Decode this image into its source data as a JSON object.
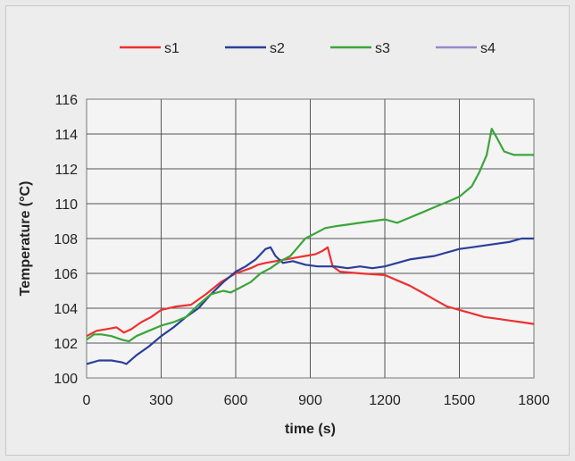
{
  "chart_data": {
    "type": "line",
    "title": "",
    "xlabel": "time (s)",
    "ylabel": "Temperature (°C)",
    "xlim": [
      0,
      1800
    ],
    "ylim": [
      100,
      116
    ],
    "x_ticks": [
      "0",
      "300",
      "600",
      "900",
      "1200",
      "1500",
      "1800"
    ],
    "y_ticks": [
      "100",
      "102",
      "104",
      "106",
      "108",
      "110",
      "112",
      "114",
      "116"
    ],
    "grid": true,
    "legend_position": "top",
    "series": [
      {
        "name": "s1",
        "color": "#ee3030",
        "points": [
          [
            0,
            102.4
          ],
          [
            40,
            102.7
          ],
          [
            80,
            102.8
          ],
          [
            120,
            102.9
          ],
          [
            150,
            102.6
          ],
          [
            180,
            102.8
          ],
          [
            220,
            103.2
          ],
          [
            260,
            103.5
          ],
          [
            300,
            103.9
          ],
          [
            360,
            104.1
          ],
          [
            420,
            104.2
          ],
          [
            480,
            104.8
          ],
          [
            540,
            105.5
          ],
          [
            600,
            106.0
          ],
          [
            660,
            106.3
          ],
          [
            690,
            106.5
          ],
          [
            720,
            106.6
          ],
          [
            760,
            106.7
          ],
          [
            800,
            106.8
          ],
          [
            840,
            106.9
          ],
          [
            880,
            107.0
          ],
          [
            920,
            107.1
          ],
          [
            950,
            107.3
          ],
          [
            970,
            107.5
          ],
          [
            990,
            106.4
          ],
          [
            1020,
            106.1
          ],
          [
            1100,
            106.0
          ],
          [
            1200,
            105.9
          ],
          [
            1250,
            105.6
          ],
          [
            1300,
            105.3
          ],
          [
            1350,
            104.9
          ],
          [
            1400,
            104.5
          ],
          [
            1450,
            104.1
          ],
          [
            1500,
            103.9
          ],
          [
            1550,
            103.7
          ],
          [
            1600,
            103.5
          ],
          [
            1650,
            103.4
          ],
          [
            1700,
            103.3
          ],
          [
            1750,
            103.2
          ],
          [
            1800,
            103.1
          ]
        ]
      },
      {
        "name": "s2",
        "color": "#2a3f9a",
        "points": [
          [
            0,
            100.8
          ],
          [
            50,
            101.0
          ],
          [
            100,
            101.0
          ],
          [
            140,
            100.9
          ],
          [
            160,
            100.8
          ],
          [
            200,
            101.3
          ],
          [
            250,
            101.8
          ],
          [
            300,
            102.4
          ],
          [
            350,
            102.9
          ],
          [
            400,
            103.5
          ],
          [
            450,
            104.0
          ],
          [
            500,
            104.8
          ],
          [
            550,
            105.5
          ],
          [
            600,
            106.1
          ],
          [
            640,
            106.4
          ],
          [
            680,
            106.8
          ],
          [
            720,
            107.4
          ],
          [
            740,
            107.5
          ],
          [
            760,
            107.0
          ],
          [
            790,
            106.6
          ],
          [
            830,
            106.7
          ],
          [
            880,
            106.5
          ],
          [
            930,
            106.4
          ],
          [
            1000,
            106.4
          ],
          [
            1050,
            106.3
          ],
          [
            1100,
            106.4
          ],
          [
            1150,
            106.3
          ],
          [
            1200,
            106.4
          ],
          [
            1250,
            106.6
          ],
          [
            1300,
            106.8
          ],
          [
            1350,
            106.9
          ],
          [
            1400,
            107.0
          ],
          [
            1450,
            107.2
          ],
          [
            1500,
            107.4
          ],
          [
            1550,
            107.5
          ],
          [
            1600,
            107.6
          ],
          [
            1650,
            107.7
          ],
          [
            1700,
            107.8
          ],
          [
            1750,
            108.0
          ],
          [
            1800,
            108.0
          ]
        ]
      },
      {
        "name": "s3",
        "color": "#3aa53a",
        "points": [
          [
            0,
            102.2
          ],
          [
            30,
            102.5
          ],
          [
            60,
            102.5
          ],
          [
            100,
            102.4
          ],
          [
            140,
            102.2
          ],
          [
            170,
            102.1
          ],
          [
            200,
            102.4
          ],
          [
            250,
            102.7
          ],
          [
            300,
            103.0
          ],
          [
            350,
            103.2
          ],
          [
            400,
            103.5
          ],
          [
            450,
            104.2
          ],
          [
            500,
            104.8
          ],
          [
            550,
            105.0
          ],
          [
            580,
            104.9
          ],
          [
            620,
            105.2
          ],
          [
            660,
            105.5
          ],
          [
            700,
            106.0
          ],
          [
            740,
            106.3
          ],
          [
            780,
            106.7
          ],
          [
            820,
            107.0
          ],
          [
            850,
            107.5
          ],
          [
            880,
            108.0
          ],
          [
            920,
            108.3
          ],
          [
            960,
            108.6
          ],
          [
            1000,
            108.7
          ],
          [
            1050,
            108.8
          ],
          [
            1100,
            108.9
          ],
          [
            1150,
            109.0
          ],
          [
            1200,
            109.1
          ],
          [
            1250,
            108.9
          ],
          [
            1300,
            109.2
          ],
          [
            1350,
            109.5
          ],
          [
            1400,
            109.8
          ],
          [
            1450,
            110.1
          ],
          [
            1500,
            110.4
          ],
          [
            1550,
            111.0
          ],
          [
            1580,
            111.8
          ],
          [
            1610,
            112.8
          ],
          [
            1630,
            114.3
          ],
          [
            1650,
            113.8
          ],
          [
            1680,
            113.0
          ],
          [
            1720,
            112.8
          ],
          [
            1760,
            112.8
          ],
          [
            1800,
            112.8
          ]
        ]
      },
      {
        "name": "s4",
        "color": "#9a88cc",
        "points": []
      }
    ]
  }
}
